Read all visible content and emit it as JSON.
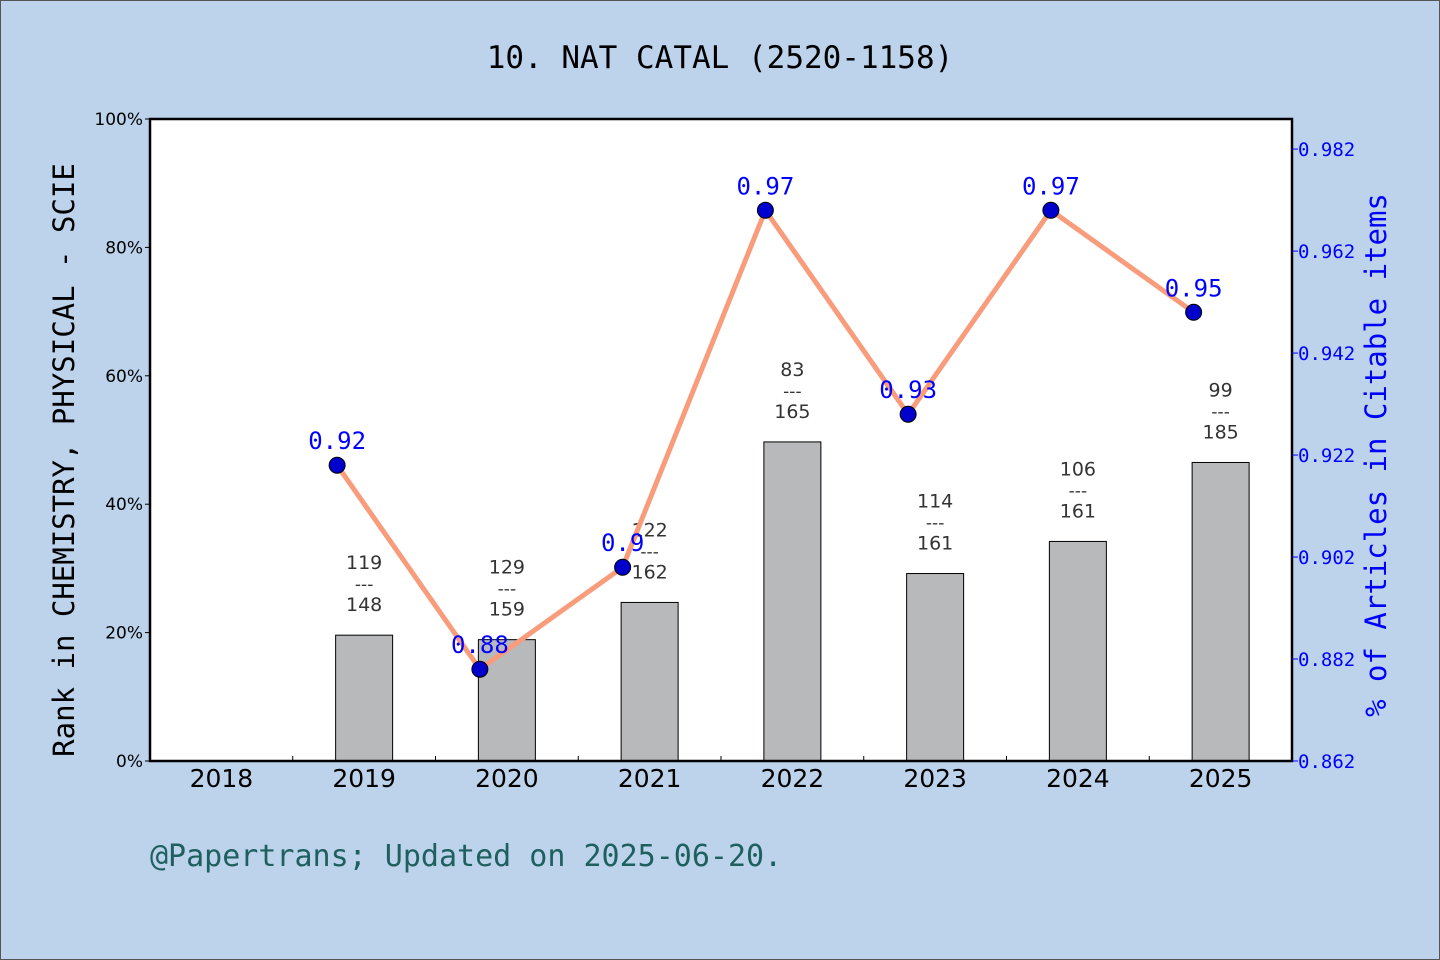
{
  "chart_data": {
    "type": "bar+line",
    "title": "10. NAT CATAL (2520-1158)",
    "categories": [
      "2018",
      "2019",
      "2020",
      "2021",
      "2022",
      "2023",
      "2024",
      "2025"
    ],
    "left_axis": {
      "label": "Rank in CHEMISTRY, PHYSICAL - SCIE",
      "ylim": [
        0,
        100
      ],
      "ticks": [
        "0%",
        "20%",
        "40%",
        "60%",
        "80%",
        "100%"
      ]
    },
    "right_axis": {
      "label": "% of Articles in Citable items",
      "ylim": [
        0.862,
        0.9879
      ],
      "ticks": [
        "0.862",
        "0.882",
        "0.902",
        "0.922",
        "0.942",
        "0.962",
        "0.982"
      ]
    },
    "bars": [
      {
        "year": "2018",
        "value": null,
        "rank": null,
        "total": null
      },
      {
        "year": "2019",
        "value": 19.6,
        "rank": "119",
        "total": "148"
      },
      {
        "year": "2020",
        "value": 18.9,
        "rank": "129",
        "total": "159"
      },
      {
        "year": "2021",
        "value": 24.7,
        "rank": "122",
        "total": "162"
      },
      {
        "year": "2022",
        "value": 49.7,
        "rank": "83",
        "total": "165"
      },
      {
        "year": "2023",
        "value": 29.2,
        "rank": "114",
        "total": "161"
      },
      {
        "year": "2024",
        "value": 34.2,
        "rank": "106",
        "total": "161"
      },
      {
        "year": "2025",
        "value": 46.5,
        "rank": "99",
        "total": "185"
      }
    ],
    "line": [
      {
        "year": "2019",
        "value": 0.92,
        "label": "0.92"
      },
      {
        "year": "2020",
        "value": 0.88,
        "label": "0.88"
      },
      {
        "year": "2021",
        "value": 0.9,
        "label": "0.9"
      },
      {
        "year": "2022",
        "value": 0.97,
        "label": "0.97"
      },
      {
        "year": "2023",
        "value": 0.93,
        "label": "0.93"
      },
      {
        "year": "2024",
        "value": 0.97,
        "label": "0.97"
      },
      {
        "year": "2025",
        "value": 0.95,
        "label": "0.95"
      }
    ],
    "rank_separator": "---",
    "colors": {
      "background": "#bcd3eb",
      "bar": "#b8b9ba",
      "line": "#f89c7c",
      "marker": "#0000cc",
      "right_axis": "#0000ff",
      "footer": "#1e5f5f"
    }
  },
  "footer": "@Papertrans; Updated on 2025-06-20."
}
